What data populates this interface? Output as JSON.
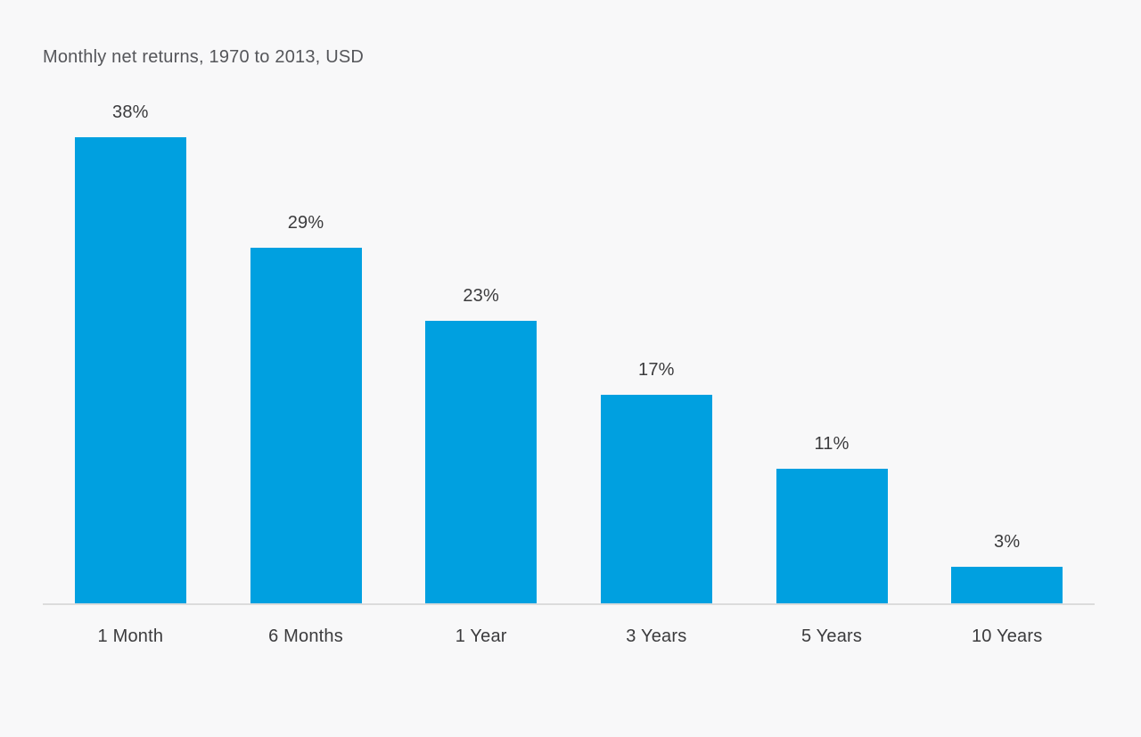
{
  "chart_data": {
    "type": "bar",
    "title": "Monthly net returns, 1970 to 2013, USD",
    "categories": [
      "1 Month",
      "6 Months",
      "1 Year",
      "3 Years",
      "5 Years",
      "10 Years"
    ],
    "values": [
      38,
      29,
      23,
      17,
      11,
      3
    ],
    "value_labels": [
      "38%",
      "29%",
      "23%",
      "17%",
      "11%",
      "3%"
    ],
    "xlabel": "",
    "ylabel": "",
    "ylim": [
      0,
      40
    ],
    "grid": false,
    "legend": false,
    "colors": {
      "bar": "#00A0E0",
      "background": "#F8F8F9",
      "axis_line": "#DCDCDC",
      "title_text": "#55565A",
      "label_text": "#3B3B3D"
    }
  }
}
